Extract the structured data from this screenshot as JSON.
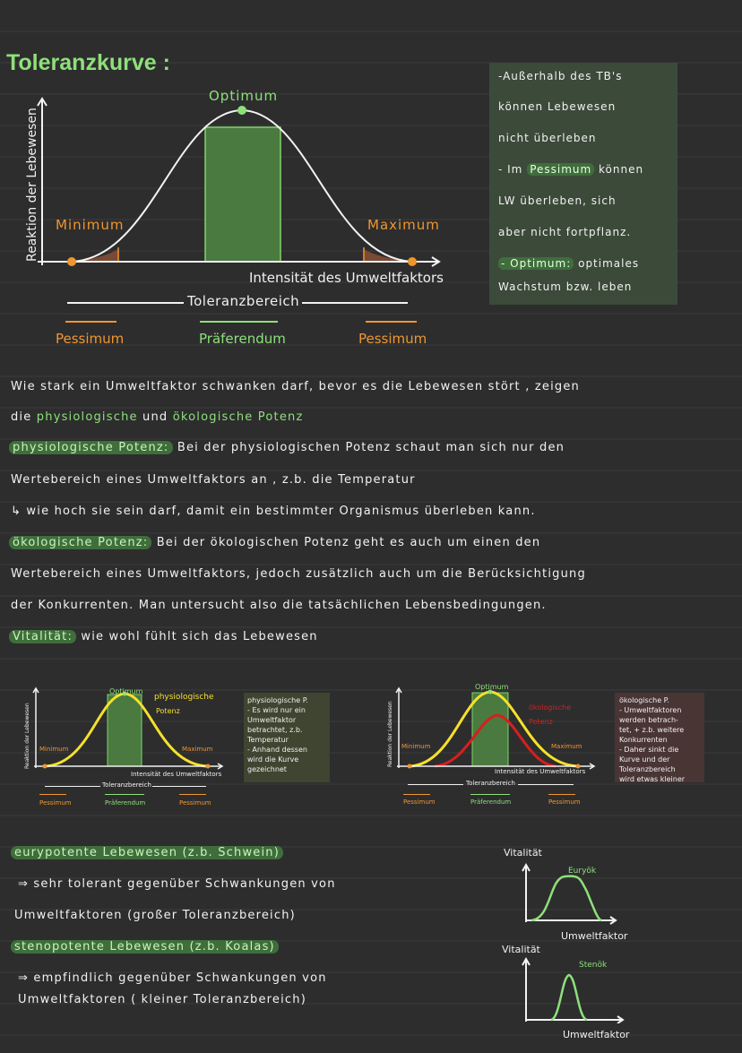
{
  "title": "Toleranzkurve :",
  "top_chart": {
    "y_label": "Reaktion der Lebewesen",
    "x_label": "Intensität des Umweltfaktors",
    "optimum": "Optimum",
    "minimum": "Minimum",
    "maximum": "Maximum",
    "toleranzbereich": "Toleranzbereich",
    "pessimum_left": "Pessimum",
    "praeferendum": "Präferendum",
    "pessimum_right": "Pessimum"
  },
  "side_note": {
    "l1": "-Außerhalb des TB's",
    "l2": "können Lebewesen",
    "l3": "nicht überleben",
    "l4a": "- Im ",
    "l4b": "Pessimum",
    "l4c": " können",
    "l5": "LW überleben, sich",
    "l6": "aber nicht fortpflanz.",
    "l7a": "- Optimum:",
    "l7b": " optimales",
    "l8": "Wachstum bzw. leben"
  },
  "text": {
    "p1": "Wie stark ein Umweltfaktor  schwanken darf, bevor es die Lebewesen stört , zeigen",
    "p2a": "die ",
    "p2b": "physiologische",
    "p2c": " und ",
    "p2d": "ökologische Potenz",
    "phys_label": "physiologische Potenz:",
    "phys_text": "  Bei der physiologischen Potenz schaut man sich nur den",
    "p4": "Wertebereich eines  Umweltfaktors an , z.b. die Temperatur",
    "p5": "↳ wie hoch sie sein darf, damit ein bestimmter Organismus überleben kann.",
    "oeko_label": "ökologische Potenz:",
    "oeko_text": " Bei der ökologischen Potenz geht es auch um einen den",
    "p7": "Wertebereich eines Umweltfaktors, jedoch zusätzlich auch um die Berücksichtigung",
    "p8": "der Konkurrenten. Man untersucht also die tatsächlichen Lebensbedingungen.",
    "vital_label": "Vitalität:",
    "vital_text": "  wie wohl fühlt sich das Lebewesen"
  },
  "small_chart_1": {
    "y_label": "Reaktion der Lebewesen",
    "optimum": "Optimum",
    "curve_label_1": "physiologische",
    "curve_label_2": "Potenz",
    "minimum": "Minimum",
    "maximum": "Maximum",
    "x_label": "Intensität des Umweltfaktors",
    "toleranzbereich": "Toleranzbereich",
    "pessimum_left": "Pessimum",
    "praeferendum": "Präferendum",
    "pessimum_right": "Pessimum",
    "note": "physiologische P.\n- Es wird nur ein\nUmweltfaktor\nbetrachtet, z.b.\nTemperatur\n- Anhand dessen\nwird die Kurve\ngezeichnet"
  },
  "small_chart_2": {
    "y_label": "Reaktion der Lebewesen",
    "optimum": "Optimum",
    "curve_label_1": "ökologische",
    "curve_label_2": "Potenz",
    "minimum": "Minimum",
    "maximum": "Maximum",
    "x_label": "Intensität des Umweltfaktors",
    "toleranzbereich": "Toleranzbereich",
    "pessimum_left": "Pessimum",
    "praeferendum": "Präferendum",
    "pessimum_right": "Pessimum",
    "note": "ökologische P.\n- Umweltfaktoren\nwerden betrach-\ntet, + z.b. weitere\nKonkurrenten\n- Daher sinkt die\nKurve und der\nToleranzbereich\nwird etwas kleiner"
  },
  "bottom": {
    "eury_heading": "eurypotente Lebewesen (z.b. Schwein)",
    "eury_l1": "⇒ sehr tolerant gegenüber Schwankungen von",
    "eury_l2": "Umweltfaktoren (großer Toleranzbereich)",
    "steno_heading": "stenopotente Lebewesen (z.b. Koalas)",
    "steno_l1": "⇒ empfindlich gegenüber Schwankungen von",
    "steno_l2": "Umweltfaktoren ( kleiner Toleranzbereich)",
    "graph1_y": "Vitalität",
    "graph1_curve": "Euryök",
    "graph1_x": "Umweltfaktor",
    "graph2_y": "Vitalität",
    "graph2_curve": "Stenök",
    "graph2_x": "Umweltfaktor"
  },
  "colors": {
    "background": "#2d2d2e",
    "green": "#8ee07a",
    "orange": "#f0962e",
    "yellow": "#f5e12a",
    "red": "#d81e1e"
  }
}
